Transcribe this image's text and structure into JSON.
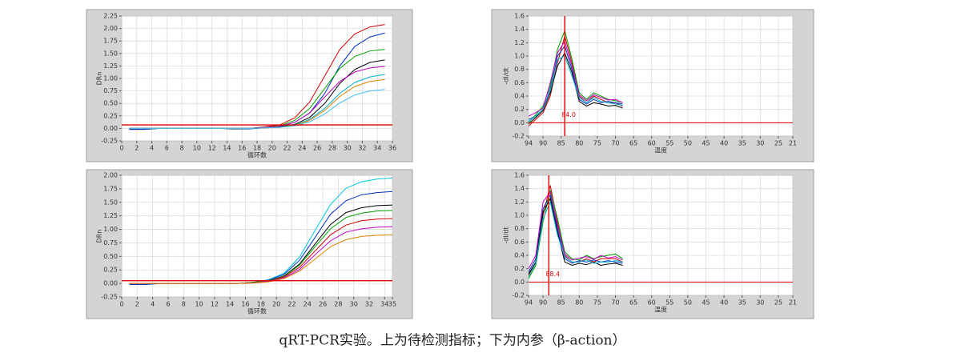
{
  "chart_data": [
    {
      "type": "line",
      "y_label": "DRn",
      "x_label": "循环数",
      "xlim": [
        0,
        36
      ],
      "xticks": [
        0,
        2,
        4,
        6,
        8,
        10,
        12,
        14,
        16,
        18,
        20,
        22,
        24,
        26,
        28,
        30,
        32,
        34,
        36
      ],
      "ylim": [
        -0.25,
        2.25
      ],
      "yticks": [
        -0.25,
        {
          "value": 0,
          "label": "0.00"
        },
        0.25,
        {
          "value": 0.5,
          "label": "0.50"
        },
        0.75,
        {
          "value": 1,
          "label": "1.00"
        },
        1.25,
        {
          "value": 1.5,
          "label": "1.50"
        },
        1.75,
        {
          "value": 2,
          "label": "2.00"
        },
        2.25
      ],
      "grid": true,
      "threshold": 0.07,
      "threshold_color": "#e00000",
      "x": [
        1,
        3,
        5,
        7,
        9,
        11,
        13,
        15,
        17,
        19,
        21,
        23,
        25,
        27,
        29,
        31,
        33,
        35
      ],
      "series": [
        {
          "color": "#d00000",
          "values": [
            -0.02,
            -0.02,
            0,
            0,
            0,
            0,
            0,
            0,
            0,
            0.03,
            0.07,
            0.21,
            0.53,
            1.05,
            1.58,
            1.89,
            2.03,
            2.08
          ]
        },
        {
          "color": "#0030c0",
          "values": [
            -0.02,
            -0.02,
            0,
            0,
            0,
            0,
            0,
            -0.01,
            -0.01,
            0.01,
            0.04,
            0.12,
            0.31,
            0.7,
            1.25,
            1.64,
            1.83,
            1.91
          ]
        },
        {
          "color": "#00a000",
          "values": [
            0,
            0,
            0,
            0,
            0,
            0,
            0,
            0,
            0,
            0.02,
            0.05,
            0.16,
            0.4,
            0.8,
            1.2,
            1.44,
            1.55,
            1.58
          ]
        },
        {
          "color": "#000000",
          "values": [
            0,
            0,
            0,
            0,
            0,
            0,
            0,
            -0.01,
            0,
            0.01,
            0.03,
            0.08,
            0.22,
            0.5,
            0.9,
            1.18,
            1.32,
            1.37
          ]
        },
        {
          "color": "#c000c0",
          "values": [
            0,
            0,
            0,
            0,
            0,
            0,
            0,
            0,
            0,
            0.02,
            0.04,
            0.12,
            0.31,
            0.63,
            0.94,
            1.13,
            1.21,
            1.24
          ]
        },
        {
          "color": "#00b0d0",
          "values": [
            0,
            0,
            0,
            0,
            0,
            0,
            0,
            0,
            0,
            0.01,
            0.02,
            0.07,
            0.18,
            0.4,
            0.7,
            0.92,
            1.03,
            1.08
          ]
        },
        {
          "color": "#e08000",
          "values": [
            0,
            0,
            0,
            0,
            0,
            0,
            0,
            0,
            0,
            0.01,
            0.02,
            0.06,
            0.16,
            0.36,
            0.64,
            0.84,
            0.94,
            0.98
          ]
        },
        {
          "color": "#40c0f0",
          "values": [
            0,
            0,
            0,
            0,
            0,
            0,
            0,
            0,
            0,
            0.01,
            0.02,
            0.05,
            0.13,
            0.29,
            0.51,
            0.67,
            0.75,
            0.78
          ]
        }
      ]
    },
    {
      "type": "line",
      "y_label": "-dI/dt",
      "x_label": "温度",
      "xlim": [
        94,
        21
      ],
      "xticks": [
        94,
        90,
        85,
        80,
        75,
        70,
        65,
        60,
        55,
        50,
        45,
        40,
        35,
        30,
        25,
        21
      ],
      "ylim": [
        -0.2,
        1.6
      ],
      "yticks": [
        -0.2,
        {
          "value": 0,
          "label": "0.0"
        },
        0.2,
        0.4,
        0.6,
        0.8,
        {
          "value": 1,
          "label": "1.0"
        },
        1.2,
        1.4,
        1.6
      ],
      "grid": true,
      "hline": 0,
      "marker": {
        "value": 84,
        "label": "84.0"
      },
      "marker_color": "#e00000",
      "x": [
        94,
        92,
        90,
        88,
        86,
        84,
        82,
        80,
        78,
        76,
        74,
        72,
        70,
        68
      ],
      "series": [
        {
          "color": "#d00000",
          "values": [
            -0.05,
            0.05,
            0.15,
            0.4,
            0.9,
            1.3,
            0.9,
            0.4,
            0.3,
            0.4,
            0.35,
            0.3,
            0.3,
            0.25
          ]
        },
        {
          "color": "#0030c0",
          "values": [
            0.05,
            0.1,
            0.2,
            0.5,
            1.0,
            1.15,
            0.8,
            0.35,
            0.28,
            0.35,
            0.3,
            0.32,
            0.3,
            0.28
          ]
        },
        {
          "color": "#00a000",
          "values": [
            0,
            0.12,
            0.25,
            0.55,
            1.1,
            1.38,
            0.95,
            0.45,
            0.35,
            0.45,
            0.4,
            0.35,
            0.33,
            0.3
          ]
        },
        {
          "color": "#000000",
          "values": [
            -0.02,
            0.08,
            0.18,
            0.45,
            0.85,
            1.05,
            0.75,
            0.32,
            0.25,
            0.3,
            0.28,
            0.25,
            0.26,
            0.22
          ]
        },
        {
          "color": "#c000c0",
          "values": [
            0.1,
            0.15,
            0.22,
            0.6,
            1.05,
            1.22,
            0.85,
            0.42,
            0.33,
            0.42,
            0.38,
            0.34,
            0.35,
            0.3
          ]
        },
        {
          "color": "#00b0d0",
          "values": [
            0.02,
            0.1,
            0.2,
            0.48,
            0.95,
            1.0,
            0.7,
            0.38,
            0.3,
            0.38,
            0.32,
            0.3,
            0.28,
            0.26
          ]
        }
      ]
    },
    {
      "type": "line",
      "y_label": "DRn",
      "x_label": "循环数",
      "xlim": [
        0,
        35
      ],
      "xticks": [
        0,
        2,
        4,
        6,
        8,
        10,
        12,
        14,
        16,
        18,
        20,
        22,
        24,
        26,
        28,
        30,
        32,
        34,
        35
      ],
      "ylim": [
        -0.25,
        2
      ],
      "yticks": [
        -0.25,
        {
          "value": 0,
          "label": "0.00"
        },
        0.25,
        {
          "value": 0.5,
          "label": "0.50"
        },
        0.75,
        {
          "value": 1,
          "label": "1.00"
        },
        1.25,
        {
          "value": 1.5,
          "label": "1.50"
        },
        1.75,
        {
          "value": 2,
          "label": "2.00"
        }
      ],
      "grid": true,
      "threshold": 0.05,
      "threshold_color": "#e00000",
      "x": [
        1,
        3,
        5,
        7,
        9,
        11,
        13,
        15,
        17,
        19,
        21,
        23,
        25,
        27,
        29,
        31,
        33,
        35
      ],
      "series": [
        {
          "color": "#00c8e0",
          "values": [
            -0.02,
            -0.02,
            0,
            0,
            0,
            0,
            0,
            0,
            0.02,
            0.07,
            0.19,
            0.49,
            0.98,
            1.46,
            1.76,
            1.88,
            1.93,
            1.95
          ]
        },
        {
          "color": "#0030c0",
          "values": [
            -0.02,
            -0.02,
            0,
            0,
            0,
            0,
            0,
            0,
            0.02,
            0.06,
            0.17,
            0.43,
            0.85,
            1.28,
            1.53,
            1.64,
            1.68,
            1.7
          ]
        },
        {
          "color": "#000000",
          "values": [
            0,
            0,
            0,
            0,
            0,
            0,
            0,
            0,
            0.02,
            0.05,
            0.14,
            0.36,
            0.73,
            1.09,
            1.31,
            1.4,
            1.44,
            1.45
          ]
        },
        {
          "color": "#00a000",
          "values": [
            0,
            0,
            0,
            0,
            0,
            0,
            0,
            0,
            0.02,
            0.05,
            0.13,
            0.34,
            0.68,
            1.01,
            1.22,
            1.3,
            1.34,
            1.35
          ]
        },
        {
          "color": "#d00000",
          "values": [
            0,
            0,
            0,
            0,
            0,
            0,
            0,
            0,
            0.01,
            0.04,
            0.12,
            0.3,
            0.6,
            0.9,
            1.08,
            1.16,
            1.19,
            1.2
          ]
        },
        {
          "color": "#c000c0",
          "values": [
            0,
            0,
            0,
            0,
            0,
            0,
            0,
            0,
            0.01,
            0.04,
            0.1,
            0.26,
            0.53,
            0.79,
            0.95,
            1.01,
            1.04,
            1.05
          ]
        },
        {
          "color": "#e08000",
          "values": [
            0,
            0,
            0,
            0,
            0,
            0,
            0,
            0,
            0.01,
            0.03,
            0.09,
            0.23,
            0.45,
            0.68,
            0.81,
            0.87,
            0.89,
            0.9
          ]
        }
      ]
    },
    {
      "type": "line",
      "y_label": "-dI/dt",
      "x_label": "温度",
      "xlim": [
        94,
        21
      ],
      "xticks": [
        94,
        90,
        85,
        80,
        75,
        70,
        65,
        60,
        55,
        50,
        45,
        40,
        35,
        30,
        25,
        21
      ],
      "ylim": [
        -0.2,
        1.6
      ],
      "yticks": [
        -0.2,
        {
          "value": 0,
          "label": "0.0"
        },
        0.2,
        0.4,
        0.6,
        0.8,
        {
          "value": 1,
          "label": "1.0"
        },
        1.2,
        1.4,
        1.6
      ],
      "grid": true,
      "hline": 0,
      "marker": {
        "value": 88.4,
        "label": "88.4"
      },
      "marker_color": "#e00000",
      "x": [
        94,
        92,
        90,
        88,
        86,
        84,
        82,
        80,
        78,
        76,
        74,
        72,
        70,
        68
      ],
      "series": [
        {
          "color": "#d00000",
          "values": [
            0.1,
            0.3,
            1.0,
            1.45,
            0.9,
            0.4,
            0.3,
            0.3,
            0.35,
            0.3,
            0.35,
            0.35,
            0.35,
            0.3
          ]
        },
        {
          "color": "#0030c0",
          "values": [
            0.15,
            0.35,
            1.1,
            1.3,
            0.8,
            0.35,
            0.28,
            0.32,
            0.3,
            0.33,
            0.3,
            0.32,
            0.3,
            0.28
          ]
        },
        {
          "color": "#00a000",
          "values": [
            0.05,
            0.25,
            0.9,
            1.38,
            0.95,
            0.45,
            0.35,
            0.33,
            0.4,
            0.35,
            0.38,
            0.4,
            0.42,
            0.35
          ]
        },
        {
          "color": "#000000",
          "values": [
            0.12,
            0.3,
            1.05,
            1.25,
            0.75,
            0.3,
            0.25,
            0.28,
            0.26,
            0.3,
            0.25,
            0.27,
            0.28,
            0.25
          ]
        },
        {
          "color": "#c000c0",
          "values": [
            0.2,
            0.4,
            1.2,
            1.35,
            0.85,
            0.42,
            0.33,
            0.36,
            0.38,
            0.34,
            0.4,
            0.36,
            0.38,
            0.33
          ]
        },
        {
          "color": "#00b0d0",
          "values": [
            0.08,
            0.28,
            0.95,
            1.2,
            0.7,
            0.38,
            0.3,
            0.3,
            0.33,
            0.28,
            0.3,
            0.3,
            0.32,
            0.3
          ]
        }
      ]
    }
  ],
  "caption": "qRT-PCR实验。上为待检测指标；下为内参（β-action）"
}
